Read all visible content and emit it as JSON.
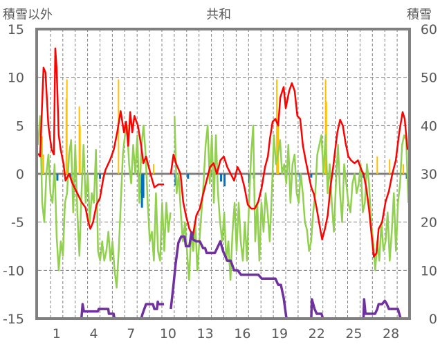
{
  "chart_data": {
    "type": "line",
    "title": "共和",
    "ylabel_left": "積雪以外",
    "ylabel_right": "積雪",
    "ylim_left": [
      -15,
      15
    ],
    "ylim_right": [
      0,
      60
    ],
    "xlim_days": [
      0,
      30
    ],
    "yticks_left": [
      "15",
      "10",
      "5",
      "0",
      "-5",
      "-10",
      "-15"
    ],
    "yticks_left_values": [
      15,
      10,
      5,
      0,
      -5,
      -10,
      -15
    ],
    "yticks_right": [
      "60",
      "50",
      "40",
      "30",
      "20",
      "10",
      "0"
    ],
    "yticks_right_values": [
      60,
      50,
      40,
      30,
      20,
      10,
      0
    ],
    "xticks": [
      "1",
      "4",
      "7",
      "10",
      "13",
      "16",
      "19",
      "22",
      "25",
      "28"
    ],
    "xticks_values": [
      1,
      4,
      7,
      10,
      13,
      16,
      19,
      22,
      25,
      28
    ],
    "grid": true,
    "colors": {
      "red": "#ff0000",
      "green": "#92d050",
      "purple": "#7030a0",
      "orange": "#ffc000",
      "blue": "#0070c0",
      "frame": "#808080"
    },
    "series": [
      {
        "name": "red-line",
        "axis": "left",
        "points": [
          [
            0,
            2.1
          ],
          [
            0.17,
            1.8
          ],
          [
            0.44,
            11
          ],
          [
            0.6,
            10.5
          ],
          [
            0.83,
            5
          ],
          [
            1.1,
            2.5
          ],
          [
            1.28,
            2
          ],
          [
            1.39,
            13
          ],
          [
            1.5,
            11
          ],
          [
            1.67,
            4
          ],
          [
            1.83,
            2.5
          ],
          [
            2.06,
            1
          ],
          [
            2.22,
            -0.7
          ],
          [
            2.5,
            0
          ],
          [
            2.78,
            -1
          ],
          [
            3.17,
            -2
          ],
          [
            3.5,
            -2.9
          ],
          [
            3.83,
            -3.5
          ],
          [
            4.06,
            -5
          ],
          [
            4.22,
            -5.7
          ],
          [
            4.44,
            -5
          ],
          [
            4.72,
            -3.2
          ],
          [
            5,
            -2.5
          ],
          [
            5.28,
            -0.4
          ],
          [
            5.44,
            0.4
          ],
          [
            5.83,
            1.5
          ],
          [
            6.11,
            2.5
          ],
          [
            6.39,
            4.3
          ],
          [
            6.67,
            6.5
          ],
          [
            6.94,
            4.3
          ],
          [
            7.11,
            5.4
          ],
          [
            7.28,
            2.9
          ],
          [
            7.44,
            6.4
          ],
          [
            7.61,
            4.3
          ],
          [
            7.78,
            6
          ],
          [
            8.06,
            5
          ],
          [
            8.33,
            2.9
          ],
          [
            8.5,
            1.1
          ],
          [
            8.72,
            1.8
          ],
          [
            8.94,
            0.7
          ],
          [
            9.17,
            -0.4
          ],
          [
            9.39,
            -1.4
          ],
          [
            9.72,
            -1.1
          ],
          [
            10.17,
            -1.1
          ],
          null,
          [
            10.72,
            0
          ],
          [
            10.94,
            2
          ],
          [
            11.17,
            1
          ],
          [
            11.5,
            0
          ],
          [
            11.72,
            -2.9
          ],
          [
            11.94,
            -4.3
          ],
          [
            12.22,
            -5.7
          ],
          [
            12.5,
            -6.4
          ],
          [
            12.78,
            -4.3
          ],
          [
            13.06,
            -3.6
          ],
          [
            13.33,
            -2.1
          ],
          [
            13.61,
            -0.7
          ],
          [
            13.89,
            0.7
          ],
          [
            14.17,
            1.1
          ],
          [
            14.44,
            0
          ],
          [
            14.72,
            1.4
          ],
          [
            15,
            1.8
          ],
          [
            15.28,
            0.7
          ],
          [
            15.56,
            0
          ],
          [
            15.83,
            -0.7
          ],
          [
            16.11,
            0.7
          ],
          [
            16.39,
            0
          ],
          [
            16.67,
            -1.4
          ],
          [
            16.94,
            -3.2
          ],
          [
            17.22,
            -3.6
          ],
          [
            17.5,
            -3.6
          ],
          [
            17.78,
            -2.9
          ],
          [
            18.06,
            -1.4
          ],
          [
            18.33,
            0.7
          ],
          [
            18.56,
            1.8
          ],
          [
            18.72,
            3.6
          ],
          [
            18.94,
            5.4
          ],
          [
            19.17,
            5.7
          ],
          [
            19.39,
            5
          ],
          [
            19.56,
            7.9
          ],
          [
            19.83,
            9
          ],
          [
            20,
            6.8
          ],
          [
            20.28,
            8.6
          ],
          [
            20.5,
            9.4
          ],
          [
            20.72,
            8.6
          ],
          [
            20.94,
            6
          ],
          [
            21.17,
            5.7
          ],
          [
            21.39,
            2.9
          ],
          [
            21.61,
            1.4
          ],
          [
            21.83,
            0
          ],
          [
            22.06,
            -1.4
          ],
          [
            22.28,
            -2.1
          ],
          [
            22.5,
            -3.6
          ],
          [
            22.78,
            -5.7
          ],
          [
            22.94,
            -6.8
          ],
          [
            23.17,
            -5.7
          ],
          [
            23.39,
            -4.3
          ],
          [
            23.61,
            -1.4
          ],
          [
            23.83,
            0.7
          ],
          [
            24.06,
            3.2
          ],
          [
            24.17,
            4.3
          ],
          [
            24.39,
            5.6
          ],
          [
            24.61,
            5
          ],
          [
            24.83,
            3.2
          ],
          [
            25.06,
            1.8
          ],
          [
            25.28,
            1.4
          ],
          [
            25.56,
            1.1
          ],
          [
            25.83,
            1.4
          ],
          [
            26.11,
            0.4
          ],
          [
            26.28,
            0
          ],
          [
            26.5,
            -1.4
          ],
          [
            26.72,
            -3.6
          ],
          [
            26.94,
            -6.4
          ],
          [
            27.11,
            -8.6
          ],
          [
            27.33,
            -8.2
          ],
          [
            27.5,
            -5.7
          ],
          [
            27.78,
            -5
          ],
          [
            28.06,
            -2.9
          ],
          [
            28.33,
            -1.8
          ],
          [
            28.61,
            0
          ],
          [
            28.89,
            1.4
          ],
          [
            29.17,
            4.3
          ],
          [
            29.44,
            6.4
          ],
          [
            29.61,
            5.7
          ],
          [
            29.83,
            2.5
          ]
        ]
      },
      {
        "name": "green-line",
        "axis": "left",
        "values": [
          3,
          6,
          -3,
          -5,
          0,
          2,
          -2,
          -3,
          1,
          -6.5,
          -10,
          -7,
          -8.5,
          -3,
          -2,
          2,
          3.5,
          -4,
          3,
          -4,
          -8.5,
          -2,
          3,
          -3,
          0,
          -5,
          -2,
          -3,
          2.5,
          -8,
          -9,
          -7,
          -9,
          -8,
          -6,
          -9,
          -7,
          -10,
          -11.8,
          -8,
          -3,
          2,
          4,
          5,
          1,
          -1,
          3,
          0,
          4,
          -3,
          3,
          5,
          2,
          -3,
          -7,
          -6,
          -9,
          -2,
          -8,
          -9,
          -3,
          -8,
          -3,
          -6,
          -4,
          null,
          6,
          -2,
          0,
          -4,
          -7,
          -5,
          -8,
          -11,
          -6,
          -8,
          -5,
          -10,
          -7,
          -4,
          -1,
          3,
          5,
          -1,
          4,
          -3,
          4,
          -2,
          -5,
          -7,
          -4,
          -9,
          -7,
          -11,
          -6,
          -3,
          -8,
          -3,
          -7,
          -9,
          -5,
          -9,
          -3,
          2,
          5,
          -7,
          -3,
          -9,
          -3,
          -6,
          -2,
          -4,
          -7,
          -2,
          4,
          1,
          2,
          3.5,
          0,
          1,
          -1,
          3,
          -3,
          1,
          2,
          -2,
          -3,
          0,
          -2,
          -5,
          -5.8,
          -8,
          -7,
          -4,
          -2,
          2,
          3,
          4,
          0,
          4,
          -2,
          1,
          -3,
          -6,
          -1,
          3,
          -2,
          -5,
          1,
          -1,
          -3,
          -4,
          -1,
          0,
          -2,
          -1,
          1,
          -4,
          -3,
          1,
          -1,
          -5,
          -7,
          -10,
          -7,
          -9,
          -5,
          -8,
          -7,
          -4,
          -9,
          -6,
          -2,
          -8,
          -3,
          -1,
          3,
          4,
          3.5,
          -3
        ]
      },
      {
        "name": "snow-depth-line",
        "axis": "right",
        "points": [
          [
            0,
            0
          ],
          [
            3.5,
            0
          ],
          [
            3.6,
            3
          ],
          [
            3.7,
            1.5
          ],
          [
            4.83,
            1.5
          ],
          [
            4.9,
            2
          ],
          [
            5.67,
            2
          ],
          [
            5.72,
            1
          ],
          [
            6.1,
            1
          ],
          [
            6.17,
            0
          ],
          [
            8.33,
            0
          ],
          [
            8.44,
            1
          ],
          [
            8.72,
            3
          ],
          [
            9.28,
            3
          ],
          [
            9.39,
            2
          ],
          [
            9.6,
            2
          ],
          [
            9.67,
            3.5
          ],
          [
            9.72,
            3
          ],
          [
            10.17,
            3
          ],
          null,
          [
            10.72,
            2
          ],
          [
            10.94,
            7
          ],
          [
            11.11,
            11.4
          ],
          [
            11.33,
            15.7
          ],
          [
            11.56,
            17
          ],
          [
            11.83,
            17
          ],
          [
            11.94,
            15
          ],
          [
            12.22,
            15
          ],
          [
            12.39,
            17.9
          ],
          [
            12.5,
            16.4
          ],
          [
            12.78,
            16
          ],
          [
            13.06,
            16
          ],
          [
            13.33,
            14.6
          ],
          [
            13.5,
            14.6
          ],
          [
            13.61,
            13.6
          ],
          [
            14.28,
            13.6
          ],
          [
            14.72,
            16
          ],
          [
            14.94,
            14
          ],
          [
            15.28,
            12
          ],
          [
            15.56,
            12
          ],
          [
            15.83,
            10
          ],
          [
            16.11,
            10
          ],
          [
            16.39,
            9.1
          ],
          [
            17.78,
            9.1
          ],
          [
            18.06,
            8.3
          ],
          [
            19.17,
            8.3
          ],
          [
            19.39,
            7
          ],
          [
            19.61,
            7
          ],
          [
            19.83,
            4.3
          ],
          [
            20.06,
            0
          ],
          [
            22.06,
            0
          ],
          [
            22.11,
            4
          ],
          [
            22.33,
            2
          ],
          [
            22.5,
            1
          ],
          [
            22.89,
            1
          ],
          [
            23,
            0
          ],
          [
            26.28,
            0
          ],
          [
            26.33,
            4
          ],
          [
            26.44,
            1
          ],
          [
            27.22,
            1
          ],
          [
            27.39,
            2
          ],
          [
            27.5,
            3
          ],
          [
            27.78,
            3
          ],
          [
            28,
            3.7
          ],
          [
            28.17,
            3
          ],
          [
            28.33,
            2
          ],
          [
            29.06,
            2
          ],
          [
            29.28,
            0
          ],
          [
            29.83,
            0
          ]
        ]
      },
      {
        "name": "orange-bars",
        "axis": "left",
        "type": "bar",
        "points": [
          [
            0.33,
            3.9
          ],
          [
            0.44,
            2
          ],
          [
            2.28,
            7.8
          ],
          [
            2.33,
            9.8
          ],
          [
            3.33,
            7
          ],
          [
            3.39,
            5
          ],
          [
            6.5,
            9.8
          ],
          [
            9.33,
            1
          ],
          [
            19.28,
            9.8
          ],
          [
            19.39,
            5
          ],
          [
            23.22,
            9.8
          ],
          [
            23.28,
            7.5
          ],
          [
            27.39,
            1.8
          ],
          [
            28.39,
            1.5
          ],
          [
            29.5,
            1
          ]
        ]
      },
      {
        "name": "blue-bars",
        "axis": "left",
        "type": "bar",
        "points": [
          [
            1.56,
            -0.7
          ],
          [
            2.67,
            -0.5
          ],
          [
            4.72,
            -0.5
          ],
          [
            5,
            -0.5
          ],
          [
            8.22,
            -2
          ],
          [
            8.39,
            -3.5
          ],
          [
            8.5,
            -2.5
          ],
          [
            11.11,
            -1.2
          ],
          [
            12.11,
            -0.5
          ],
          [
            14.78,
            -0.8
          ],
          [
            15.06,
            -1.3
          ],
          [
            17.06,
            -1
          ],
          [
            17.44,
            -0.5
          ],
          [
            21.17,
            -0.7
          ],
          [
            22.06,
            -0.4
          ],
          [
            26.28,
            -0.4
          ],
          [
            29.78,
            -0.5
          ]
        ]
      }
    ]
  }
}
